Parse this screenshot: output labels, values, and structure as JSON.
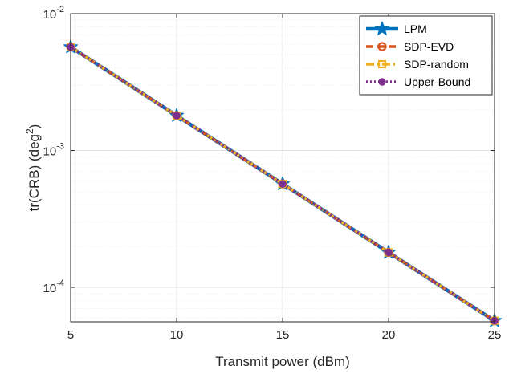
{
  "chart_data": {
    "type": "line",
    "xlabel": "Transmit power (dBm)",
    "ylabel_main": "tr(CRB) (deg",
    "ylabel_sup": "2",
    "ylabel_close": ")",
    "xlim": [
      5,
      25
    ],
    "ylim": [
      5.6e-05,
      0.01
    ],
    "yscale": "log",
    "grid": true,
    "legend_position": "top-right",
    "x_ticks": [
      {
        "value": 5,
        "label": "5"
      },
      {
        "value": 10,
        "label": "10"
      },
      {
        "value": 15,
        "label": "15"
      },
      {
        "value": 20,
        "label": "20"
      },
      {
        "value": 25,
        "label": "25"
      }
    ],
    "y_ticks": [
      {
        "value": 0.01,
        "base": "10",
        "exp": "-2"
      },
      {
        "value": 0.001,
        "base": "10",
        "exp": "-3"
      },
      {
        "value": 0.0001,
        "base": "10",
        "exp": "-4"
      }
    ],
    "x": [
      5,
      10,
      15,
      20,
      25
    ],
    "series": [
      {
        "name": "LPM",
        "values": [
          0.0057,
          0.0018,
          0.00057,
          0.00018,
          5.7e-05
        ],
        "color": "#0072BD",
        "marker": "star",
        "dash": "solid"
      },
      {
        "name": "SDP-EVD",
        "values": [
          0.0057,
          0.0018,
          0.00057,
          0.00018,
          5.7e-05
        ],
        "color": "#D95319",
        "marker": "circle",
        "dash": "dashed"
      },
      {
        "name": "SDP-random",
        "values": [
          0.0057,
          0.0018,
          0.00057,
          0.00018,
          5.7e-05
        ],
        "color": "#EDB120",
        "marker": "square",
        "dash": "dashdot"
      },
      {
        "name": "Upper-Bound",
        "values": [
          0.0057,
          0.0018,
          0.00057,
          0.00018,
          5.7e-05
        ],
        "color": "#7E2F8E",
        "marker": "filled-circle",
        "dash": "dotted"
      }
    ]
  }
}
